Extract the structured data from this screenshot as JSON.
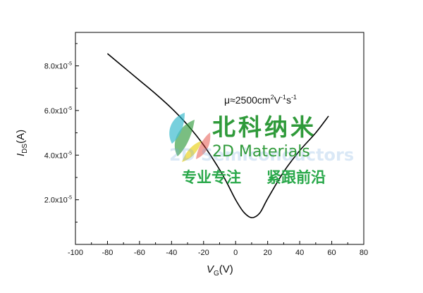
{
  "chart_data": {
    "type": "line",
    "xlabel": {
      "base": "V",
      "sub": "G",
      "unit": "(V)"
    },
    "ylabel": {
      "base": "I",
      "sub": "DS",
      "unit": "(A)"
    },
    "annotation": {
      "mu": "μ≈2500cm",
      "sup1": "2",
      "v": "V",
      "sup2": "-1",
      "s": "s",
      "sup3": "-1"
    },
    "xlim": [
      -100,
      80
    ],
    "ylim": [
      0,
      9.5e-05
    ],
    "x_ticks": [
      -100,
      -80,
      -60,
      -40,
      -20,
      0,
      20,
      40,
      60,
      80
    ],
    "x_tick_labels": [
      "-100",
      "-80",
      "-60",
      "-40",
      "-20",
      "0",
      "20",
      "40",
      "60",
      "80"
    ],
    "y_ticks": [
      2e-05,
      4e-05,
      6e-05,
      8e-05
    ],
    "y_tick_labels": [
      {
        "mant": "2.0x10",
        "exp": "-5"
      },
      {
        "mant": "4.0x10",
        "exp": "-5"
      },
      {
        "mant": "6.0x10",
        "exp": "-5"
      },
      {
        "mant": "8.0x10",
        "exp": "-5"
      }
    ],
    "grid": false,
    "series": [
      {
        "color": "#000000",
        "x": [
          -80,
          -70,
          -60,
          -50,
          -40,
          -30,
          -20,
          -10,
          -5,
          0,
          5,
          10,
          15,
          20,
          30,
          40,
          50,
          58
        ],
        "y": [
          8.55e-05,
          7.95e-05,
          7.35e-05,
          6.75e-05,
          6.1e-05,
          5.35e-05,
          4.45e-05,
          3.35e-05,
          2.7e-05,
          2e-05,
          1.45e-05,
          1.2e-05,
          1.4e-05,
          2.05e-05,
          3.25e-05,
          4.2e-05,
          5e-05,
          5.75e-05
        ]
      }
    ]
  },
  "watermark": {
    "brand_cn": "北科纳米",
    "brand_en": "2D Materials",
    "slogan_left": "专业专注",
    "slogan_right": "紧跟前沿",
    "behind_text": "2D Semiconductors",
    "colors": {
      "green": "#2f9a3a",
      "teal": "#29b6c9",
      "yellow": "#e8d21f",
      "red": "#e03a2f",
      "blue": "#2d6fd1"
    }
  }
}
